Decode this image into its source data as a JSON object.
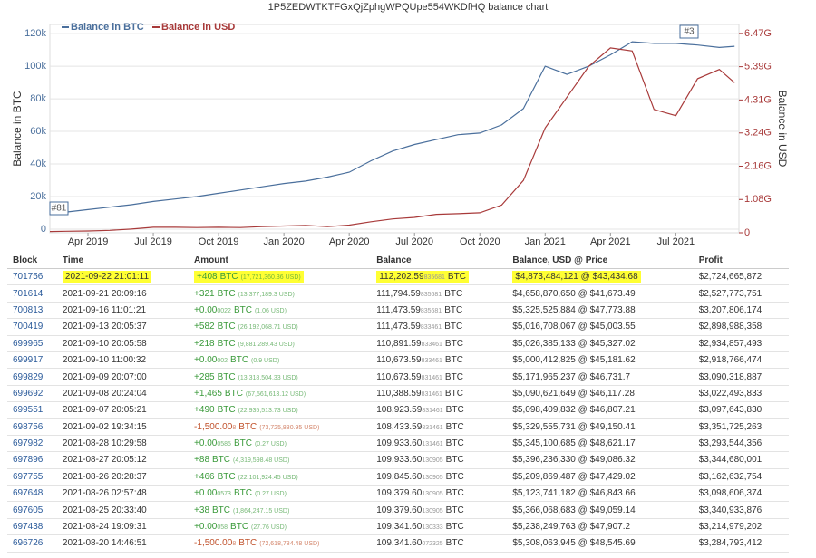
{
  "chart_data": {
    "type": "line",
    "title": "1P5ZEDWTKTFGxQjZphgWPQUpe554WKDfHQ balance chart",
    "y_label": "Balance in BTC",
    "y2_label": "Balance in USD",
    "annotations": [
      "#81",
      "#3"
    ],
    "x": [
      -1.75,
      -1,
      0,
      1,
      2,
      3,
      4,
      5,
      6,
      7,
      8,
      9,
      10,
      11,
      12,
      13,
      14,
      15,
      16,
      17,
      18,
      19,
      20,
      21,
      22,
      23,
      24,
      25,
      26,
      27,
      28,
      29,
      29.7
    ],
    "xlim": [
      -1.75,
      29.9
    ],
    "xticks": [
      {
        "value": 0,
        "label": "Apr 2019"
      },
      {
        "value": 3,
        "label": "Jul 2019"
      },
      {
        "value": 6,
        "label": "Oct 2019"
      },
      {
        "value": 9,
        "label": "Jan 2020"
      },
      {
        "value": 12,
        "label": "Apr 2020"
      },
      {
        "value": 15,
        "label": "Jul 2020"
      },
      {
        "value": 18,
        "label": "Oct 2020"
      },
      {
        "value": 21,
        "label": "Jan 2021"
      },
      {
        "value": 24,
        "label": "Apr 2021"
      },
      {
        "value": 27,
        "label": "Jul 2021"
      }
    ],
    "ylim": [
      -2200,
      125600
    ],
    "yticks": [
      0,
      {
        "value": 20000,
        "label": "20k"
      },
      {
        "value": 40000,
        "label": "40k"
      },
      {
        "value": 60000,
        "label": "60k"
      },
      {
        "value": 80000,
        "label": "80k"
      },
      {
        "value": 100000,
        "label": "100k"
      },
      {
        "value": 120000,
        "label": "120k"
      }
    ],
    "y2lim": [
      0,
      6.76
    ],
    "y2ticks": [
      0,
      {
        "value": 1.08,
        "label": "1.08G"
      },
      {
        "value": 2.16,
        "label": "2.16G"
      },
      {
        "value": 3.24,
        "label": "3.24G"
      },
      {
        "value": 4.31,
        "label": "4.31G"
      },
      {
        "value": 5.39,
        "label": "5.39G"
      },
      {
        "value": 6.47,
        "label": "6.47G"
      }
    ],
    "grid": true,
    "series": [
      {
        "name": "Balance in BTC",
        "color": "#4a6f9c",
        "values": [
          10000,
          10500,
          12000,
          13500,
          15000,
          17000,
          18500,
          20000,
          22000,
          24000,
          26000,
          28000,
          29500,
          32000,
          35000,
          42000,
          48000,
          52000,
          55000,
          58000,
          59000,
          64000,
          74000,
          100000,
          95000,
          100000,
          107000,
          115000,
          114000,
          114000,
          113000,
          111500,
          112200
        ]
      },
      {
        "name": "Balance in USD",
        "color": "#a83a3a",
        "axis": "y2",
        "values": [
          0.04,
          0.05,
          0.06,
          0.08,
          0.12,
          0.18,
          0.18,
          0.17,
          0.18,
          0.17,
          0.2,
          0.22,
          0.24,
          0.2,
          0.25,
          0.36,
          0.45,
          0.5,
          0.6,
          0.62,
          0.65,
          0.9,
          1.7,
          3.4,
          4.4,
          5.4,
          6.0,
          5.9,
          4.0,
          3.8,
          5.0,
          5.3,
          4.87
        ]
      }
    ]
  },
  "table": {
    "headers": [
      "Block",
      "Time",
      "Amount",
      "Balance",
      "Balance, USD @ Price",
      "Profit"
    ],
    "rows": [
      {
        "highlight": true,
        "block": "701756",
        "time": "2021-09-22 21:01:11",
        "amount": {
          "main": "+408",
          "unit": "BTC",
          "usd": "(17,721,360.36 USD)"
        },
        "balance": {
          "main": "112,202.59",
          "digits": "835681",
          "unit": "BTC"
        },
        "usd": "$4,873,484,121 @ $43,434.68",
        "profit": "$2,724,665,872"
      },
      {
        "block": "701614",
        "time": "2021-09-21 20:09:16",
        "amount": {
          "main": "+321",
          "unit": "BTC",
          "usd": "(13,377,189.3 USD)"
        },
        "balance": {
          "main": "111,794.59",
          "digits": "835681",
          "unit": "BTC"
        },
        "usd": "$4,658,870,650 @ $41,673.49",
        "profit": "$2,527,773,751"
      },
      {
        "block": "700813",
        "time": "2021-09-16 11:01:21",
        "amount": {
          "main": "+0.00",
          "digits": "0022",
          "unit": "BTC",
          "usd": "(1.06 USD)"
        },
        "balance": {
          "main": "111,473.59",
          "digits": "835681",
          "unit": "BTC"
        },
        "usd": "$5,325,525,884 @ $47,773.88",
        "profit": "$3,207,806,174"
      },
      {
        "block": "700419",
        "time": "2021-09-13 20:05:37",
        "amount": {
          "main": "+582",
          "unit": "BTC",
          "usd": "(26,192,068.71 USD)"
        },
        "balance": {
          "main": "111,473.59",
          "digits": "833461",
          "unit": "BTC"
        },
        "usd": "$5,016,708,067 @ $45,003.55",
        "profit": "$2,898,988,358"
      },
      {
        "block": "699965",
        "time": "2021-09-10 20:05:58",
        "amount": {
          "main": "+218",
          "unit": "BTC",
          "usd": "(9,881,289.43 USD)"
        },
        "balance": {
          "main": "110,891.59",
          "digits": "833461",
          "unit": "BTC"
        },
        "usd": "$5,026,385,133 @ $45,327.02",
        "profit": "$2,934,857,493"
      },
      {
        "block": "699917",
        "time": "2021-09-10 11:00:32",
        "amount": {
          "main": "+0.00",
          "digits": "002",
          "unit": "BTC",
          "usd": "(0.9 USD)"
        },
        "balance": {
          "main": "110,673.59",
          "digits": "833461",
          "unit": "BTC"
        },
        "usd": "$5,000,412,825 @ $45,181.62",
        "profit": "$2,918,766,474"
      },
      {
        "block": "699829",
        "time": "2021-09-09 20:07:00",
        "amount": {
          "main": "+285",
          "unit": "BTC",
          "usd": "(13,318,504.33 USD)"
        },
        "balance": {
          "main": "110,673.59",
          "digits": "831461",
          "unit": "BTC"
        },
        "usd": "$5,171,965,237 @ $46,731.7",
        "profit": "$3,090,318,887"
      },
      {
        "block": "699692",
        "time": "2021-09-08 20:24:04",
        "amount": {
          "main": "+1,465",
          "unit": "BTC",
          "usd": "(67,561,613.12 USD)"
        },
        "balance": {
          "main": "110,388.59",
          "digits": "831461",
          "unit": "BTC"
        },
        "usd": "$5,090,621,649 @ $46,117.28",
        "profit": "$3,022,493,833"
      },
      {
        "block": "699551",
        "time": "2021-09-07 20:05:21",
        "amount": {
          "main": "+490",
          "unit": "BTC",
          "usd": "(22,935,513.73 USD)"
        },
        "balance": {
          "main": "108,923.59",
          "digits": "831461",
          "unit": "BTC"
        },
        "usd": "$5,098,409,832 @ $46,807.21",
        "profit": "$3,097,643,830"
      },
      {
        "block": "698756",
        "time": "2021-09-02 19:34:15",
        "amount": {
          "main": "-1,500.00",
          "digits": "8",
          "unit": "BTC",
          "usd": "(73,725,880.95 USD)"
        },
        "balance": {
          "main": "108,433.59",
          "digits": "831461",
          "unit": "BTC"
        },
        "usd": "$5,329,555,731 @ $49,150.41",
        "profit": "$3,351,725,263"
      },
      {
        "block": "697982",
        "time": "2021-08-28 10:29:58",
        "amount": {
          "main": "+0.00",
          "digits": "0585",
          "unit": "BTC",
          "usd": "(0.27 USD)"
        },
        "balance": {
          "main": "109,933.60",
          "digits": "131461",
          "unit": "BTC"
        },
        "usd": "$5,345,100,685 @ $48,621.17",
        "profit": "$3,293,544,356"
      },
      {
        "block": "697896",
        "time": "2021-08-27 20:05:12",
        "amount": {
          "main": "+88",
          "unit": "BTC",
          "usd": "(4,319,598.48 USD)"
        },
        "balance": {
          "main": "109,933.60",
          "digits": "130905",
          "unit": "BTC"
        },
        "usd": "$5,396,236,330 @ $49,086.32",
        "profit": "$3,344,680,001"
      },
      {
        "block": "697755",
        "time": "2021-08-26 20:28:37",
        "amount": {
          "main": "+466",
          "unit": "BTC",
          "usd": "(22,101,924.45 USD)"
        },
        "balance": {
          "main": "109,845.60",
          "digits": "130905",
          "unit": "BTC"
        },
        "usd": "$5,209,869,487 @ $47,429.02",
        "profit": "$3,162,632,754"
      },
      {
        "block": "697648",
        "time": "2021-08-26 02:57:48",
        "amount": {
          "main": "+0.00",
          "digits": "0573",
          "unit": "BTC",
          "usd": "(0.27 USD)"
        },
        "balance": {
          "main": "109,379.60",
          "digits": "130905",
          "unit": "BTC"
        },
        "usd": "$5,123,741,182 @ $46,843.66",
        "profit": "$3,098,606,374"
      },
      {
        "block": "697605",
        "time": "2021-08-25 20:33:40",
        "amount": {
          "main": "+38",
          "unit": "BTC",
          "usd": "(1,864,247.15 USD)"
        },
        "balance": {
          "main": "109,379.60",
          "digits": "130905",
          "unit": "BTC"
        },
        "usd": "$5,366,068,683 @ $49,059.14",
        "profit": "$3,340,933,876"
      },
      {
        "block": "697438",
        "time": "2021-08-24 19:09:31",
        "amount": {
          "main": "+0.00",
          "digits": "058",
          "unit": "BTC",
          "usd": "(27.76 USD)"
        },
        "balance": {
          "main": "109,341.60",
          "digits": "130333",
          "unit": "BTC"
        },
        "usd": "$5,238,249,763 @ $47,907.2",
        "profit": "$3,214,979,202"
      },
      {
        "block": "696726",
        "time": "2021-08-20 14:46:51",
        "amount": {
          "main": "-1,500.00",
          "digits": "8",
          "unit": "BTC",
          "usd": "(72,618,784.48 USD)"
        },
        "balance": {
          "main": "109,341.60",
          "digits": "072325",
          "unit": "BTC"
        },
        "usd": "$5,308,063,945 @ $48,545.69",
        "profit": "$3,284,793,412"
      }
    ]
  }
}
